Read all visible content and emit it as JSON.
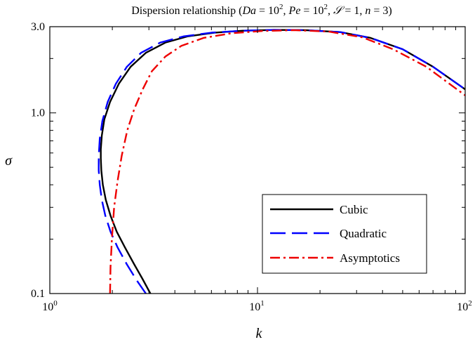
{
  "chart_data": {
    "type": "line",
    "title": "Dispersion relationship (Da = 10², Pe = 10², S = 1, n = 3)",
    "title_parts": {
      "prefix": "Dispersion relationship (",
      "da_sym": "Da",
      "pe_sym": "Pe",
      "s_sym": "𝒮",
      "n_sym": "n",
      "eq": " = ",
      "ten": "10",
      "exp": "2",
      "one": "1",
      "three": "3",
      "sep": ", ",
      "suffix": ")"
    },
    "xlabel": "k",
    "ylabel": "σ",
    "xscale": "log",
    "yscale": "log",
    "xlim": [
      1,
      100
    ],
    "ylim": [
      0.1,
      3.0
    ],
    "xticks": [
      {
        "base": "10",
        "exp": "0"
      },
      {
        "base": "10",
        "exp": "1"
      },
      {
        "base": "10",
        "exp": "2"
      }
    ],
    "yticks": [
      "0.1",
      "1.0",
      "3.0"
    ],
    "yticks_values": [
      0.1,
      1.0,
      3.0
    ],
    "grid": false,
    "legend_position": "lower-right",
    "series": [
      {
        "name": "Cubic",
        "color": "#000000",
        "style": "solid",
        "x": [
          3.05,
          2.8,
          2.55,
          2.3,
          2.1,
          1.96,
          1.86,
          1.8,
          1.77,
          1.76,
          1.76,
          1.78,
          1.83,
          1.95,
          2.15,
          2.45,
          2.9,
          3.6,
          4.6,
          6.2,
          8.5,
          12.0,
          17.0,
          25.0,
          35.0,
          50.0,
          70.0,
          100.0
        ],
        "y": [
          0.1,
          0.12,
          0.145,
          0.18,
          0.22,
          0.27,
          0.33,
          0.4,
          0.48,
          0.56,
          0.63,
          0.75,
          0.92,
          1.15,
          1.45,
          1.8,
          2.15,
          2.45,
          2.65,
          2.78,
          2.85,
          2.88,
          2.87,
          2.8,
          2.6,
          2.25,
          1.8,
          1.35
        ]
      },
      {
        "name": "Quadratic",
        "color": "#0000ff",
        "style": "dashed",
        "x": [
          2.9,
          2.6,
          2.35,
          2.12,
          1.96,
          1.85,
          1.78,
          1.74,
          1.72,
          1.72,
          1.74,
          1.79,
          1.9,
          2.08,
          2.35,
          2.75,
          3.4,
          4.4,
          6.0,
          8.5,
          12.0,
          17.0,
          25.0,
          35.0,
          50.0,
          70.0,
          100.0
        ],
        "y": [
          0.1,
          0.12,
          0.145,
          0.18,
          0.22,
          0.27,
          0.33,
          0.4,
          0.48,
          0.58,
          0.72,
          0.9,
          1.15,
          1.45,
          1.8,
          2.15,
          2.45,
          2.65,
          2.78,
          2.85,
          2.88,
          2.87,
          2.8,
          2.6,
          2.25,
          1.8,
          1.35
        ]
      },
      {
        "name": "Asymptotics",
        "color": "#ee0000",
        "style": "dashdot",
        "x": [
          1.95,
          1.96,
          1.99,
          2.04,
          2.12,
          2.22,
          2.36,
          2.55,
          2.8,
          3.1,
          3.6,
          4.3,
          5.5,
          7.5,
          10.5,
          15.0,
          22.0,
          32.0,
          45.0,
          65.0,
          100.0
        ],
        "y": [
          0.1,
          0.14,
          0.2,
          0.3,
          0.42,
          0.58,
          0.8,
          1.05,
          1.35,
          1.7,
          2.05,
          2.35,
          2.6,
          2.76,
          2.84,
          2.87,
          2.82,
          2.62,
          2.25,
          1.8,
          1.25
        ]
      }
    ]
  }
}
